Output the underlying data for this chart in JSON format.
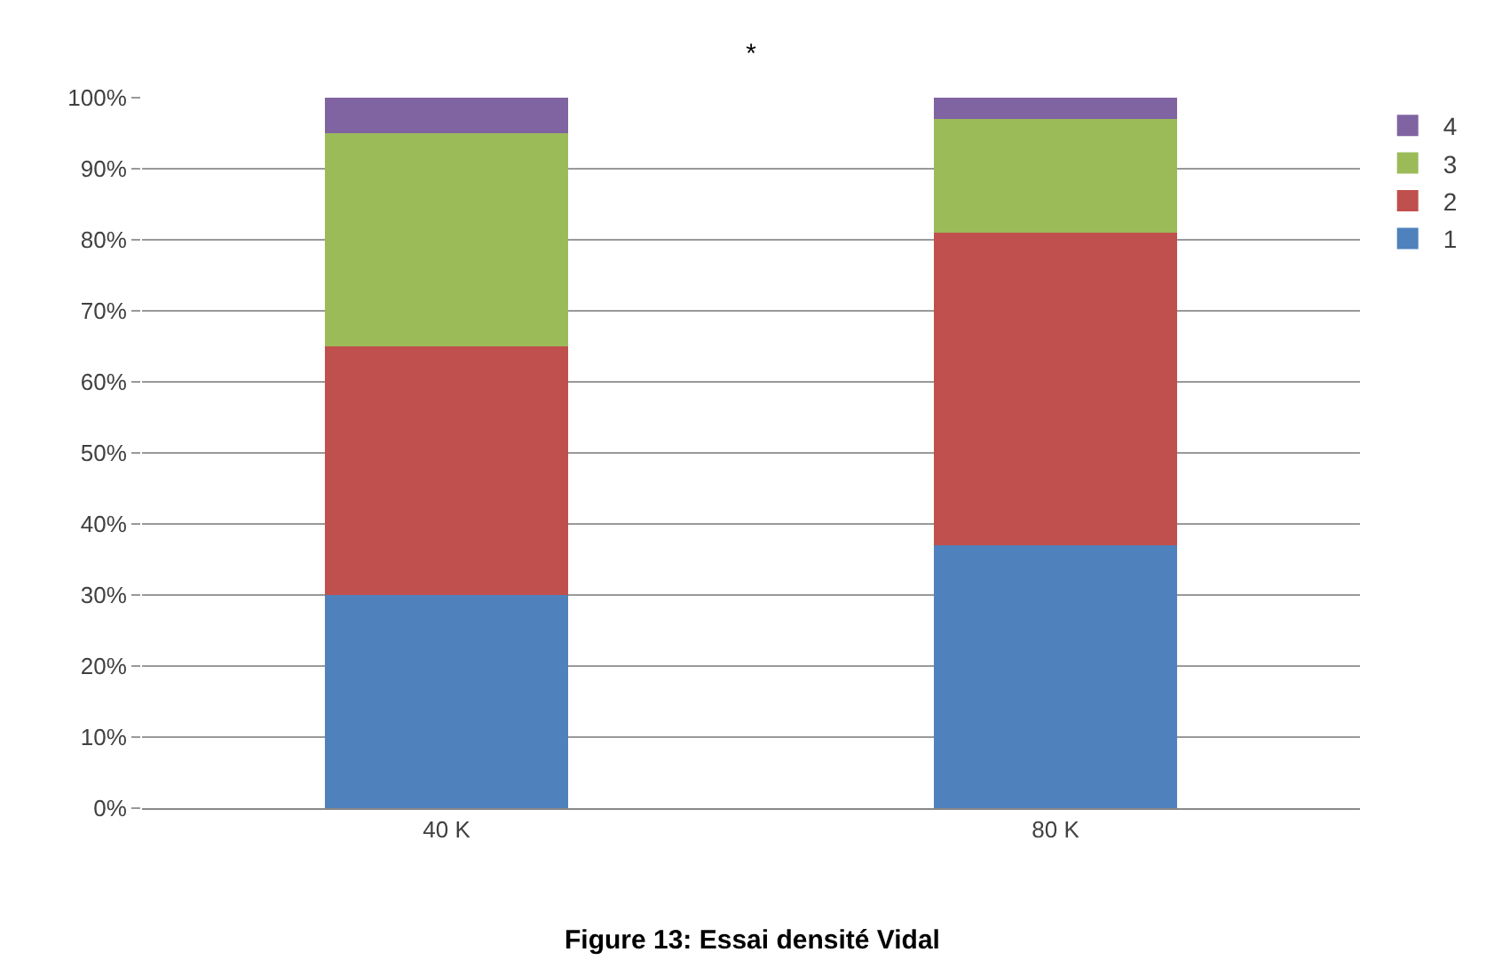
{
  "chart_data": {
    "type": "bar",
    "title": "*",
    "stacked": true,
    "categories": [
      "40 K",
      "80 K"
    ],
    "series": [
      {
        "name": "1",
        "color": "#4f81bd",
        "values": [
          30,
          37
        ]
      },
      {
        "name": "2",
        "color": "#c0504d",
        "values": [
          35,
          44
        ]
      },
      {
        "name": "3",
        "color": "#9bbb59",
        "values": [
          30,
          16
        ]
      },
      {
        "name": "4",
        "color": "#8064a2",
        "values": [
          5,
          3
        ]
      }
    ],
    "ylim": [
      0,
      100
    ],
    "yticks": [
      {
        "value": 0,
        "label": "0%"
      },
      {
        "value": 10,
        "label": "10%"
      },
      {
        "value": 20,
        "label": "20%"
      },
      {
        "value": 30,
        "label": "30%"
      },
      {
        "value": 40,
        "label": "40%"
      },
      {
        "value": 50,
        "label": "50%"
      },
      {
        "value": 60,
        "label": "60%"
      },
      {
        "value": 70,
        "label": "70%"
      },
      {
        "value": 80,
        "label": "80%"
      },
      {
        "value": 90,
        "label": "90%"
      },
      {
        "value": 100,
        "label": "100%"
      }
    ],
    "grid": "y",
    "legend": "top right",
    "annotations": [
      "Figure 13: Essai densité Vidal"
    ]
  }
}
